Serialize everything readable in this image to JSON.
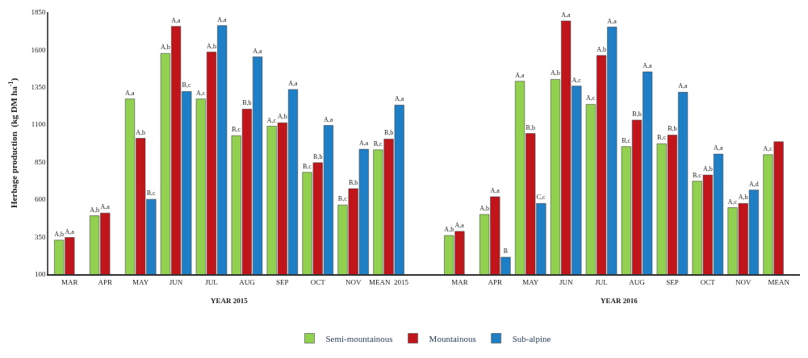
{
  "chart_data": {
    "type": "bar",
    "ylabel": "Herbage production  (kg DM ha$^{-1}$)",
    "categories": [
      "MAR",
      "APR",
      "MAY",
      "JUN",
      "JUL",
      "AUG",
      "SEP",
      "OCT",
      "NOV",
      "MEAN  2015",
      null,
      "MAR",
      "APR",
      "MAY",
      "JUN",
      "JUL",
      "AUG",
      "SEP",
      "OCT",
      "NOV",
      "MEAN"
    ],
    "series": [
      {
        "name": "Semi-mountainous",
        "color": "#92d050",
        "values": [
          327,
          490,
          1270,
          1574,
          1270,
          1025,
          1088,
          780,
          562,
          930,
          null,
          358,
          499,
          1388,
          1401,
          1234,
          952,
          971,
          721,
          544,
          898
        ],
        "value_labels": [
          "A,b",
          "A,b",
          "A,a",
          "A,b",
          "A,c",
          "B,c",
          "A,c",
          "B,c",
          "B,c",
          "B,c",
          null,
          "A,b",
          "A,b",
          "A,a",
          "A,b",
          "A,c",
          "B,c",
          "B,c",
          "B,c",
          "A,c",
          "A,c"
        ]
      },
      {
        "name": "Mountainous",
        "color": "#c0161b",
        "values": [
          345,
          508,
          1007,
          1755,
          1583,
          1202,
          1111,
          844,
          671,
          1002,
          null,
          386,
          617,
          1039,
          1791,
          1560,
          1129,
          1029,
          762,
          572,
          984
        ],
        "value_labels": [
          "A,a",
          "A,a",
          "A,b",
          "A,a",
          "A,b",
          "B,b",
          "A,b",
          "B,b",
          "B,b",
          "B,b",
          null,
          "A,a",
          "A,a",
          "B,b",
          "A,a",
          "A,b",
          "B,b",
          "B,b",
          "A,b",
          "A,b",
          null
        ]
      },
      {
        "name": "Sub-alpine",
        "color": "#1f7fc6",
        "values": [
          null,
          null,
          600,
          1320,
          1760,
          1551,
          1333,
          1093,
          934,
          1229,
          null,
          null,
          213,
          572,
          1356,
          1750,
          1451,
          1315,
          902,
          662,
          null
        ],
        "value_labels": [
          null,
          null,
          "B,c",
          "B,c",
          "A,a",
          "A,a",
          "A,a",
          "A,a",
          "A,a",
          "A,a",
          null,
          null,
          "B",
          "C,c",
          "A,c",
          "A,a",
          "A,a",
          "A,a",
          "A,a",
          "A,d",
          null
        ]
      }
    ],
    "ylim": [
      100,
      1850
    ],
    "yticks": [
      100,
      350,
      600,
      850,
      1100,
      1350,
      1600,
      1850
    ],
    "legend": "bottom",
    "annotations": [
      "YEAR 2015",
      "YEAR 2016"
    ]
  }
}
